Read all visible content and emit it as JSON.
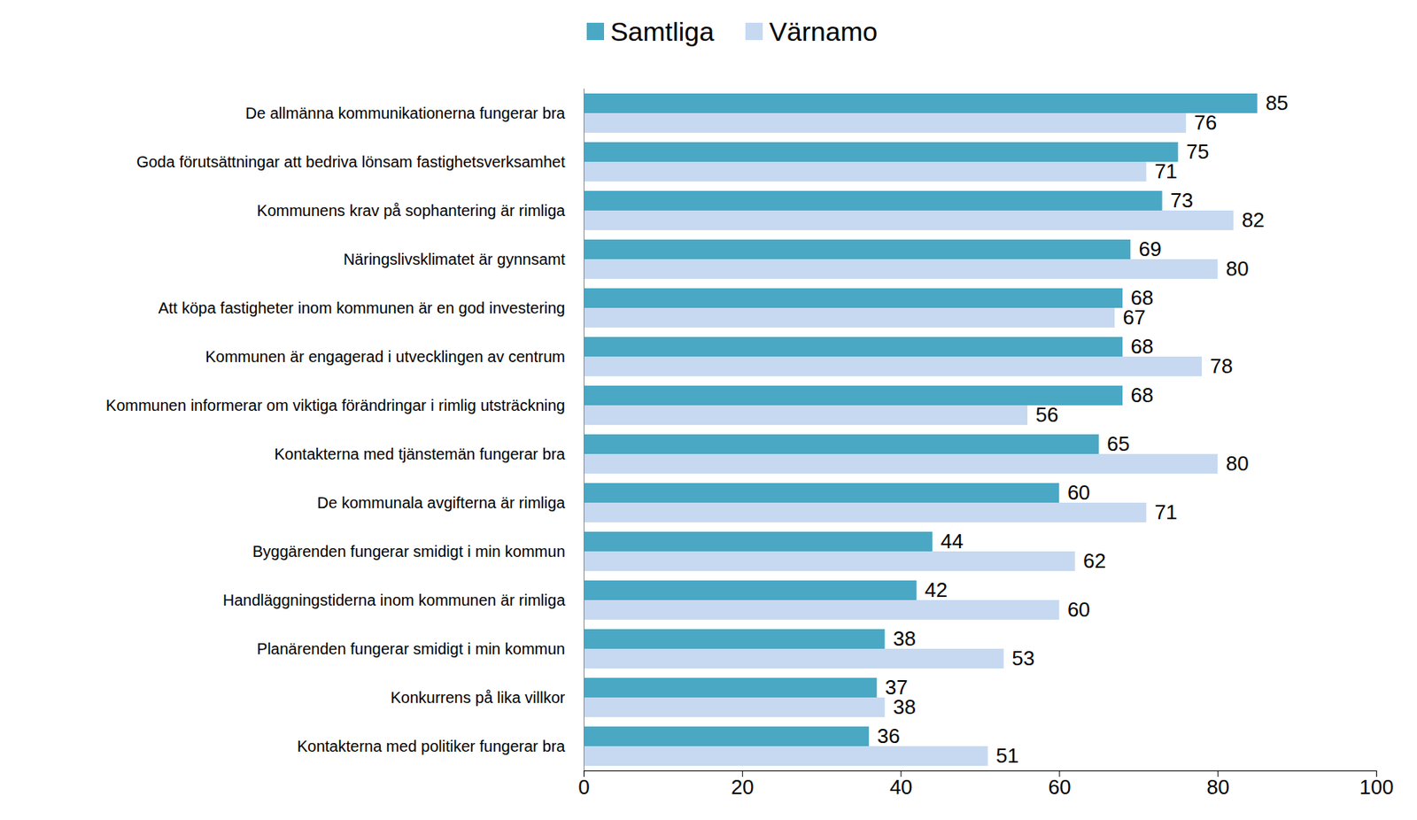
{
  "chart_data": {
    "type": "bar",
    "orientation": "horizontal",
    "data_labels": true,
    "grid": false,
    "legend": "top",
    "categories": [
      "De allmänna kommunikationerna fungerar bra",
      "Goda förutsättningar att bedriva lönsam fastighetsverksamhet",
      "Kommunens krav på sophantering är rimliga",
      "Näringslivsklimatet är gynnsamt",
      "Att köpa fastigheter inom kommunen är en god investering",
      "Kommunen är engagerad i utvecklingen av centrum",
      "Kommunen informerar om viktiga förändringar i rimlig utsträckning",
      "Kontakterna med tjänstemän fungerar bra",
      "De kommunala avgifterna är rimliga",
      "Byggärenden fungerar smidigt i min kommun",
      "Handläggningstiderna inom kommunen är rimliga",
      "Planärenden fungerar smidigt i min kommun",
      "Konkurrens på lika villkor",
      "Kontakterna med politiker fungerar bra"
    ],
    "series": [
      {
        "name": "Samtliga",
        "color": "#4aa8c4",
        "values": [
          85,
          75,
          73,
          69,
          68,
          68,
          68,
          65,
          60,
          44,
          42,
          38,
          37,
          36
        ]
      },
      {
        "name": "Värnamo",
        "color": "#c6d9f1",
        "values": [
          76,
          71,
          82,
          80,
          67,
          78,
          56,
          80,
          71,
          62,
          60,
          53,
          38,
          51
        ]
      }
    ],
    "xlim": [
      0,
      100
    ],
    "xticks": [
      0,
      20,
      40,
      60,
      80,
      100
    ]
  }
}
